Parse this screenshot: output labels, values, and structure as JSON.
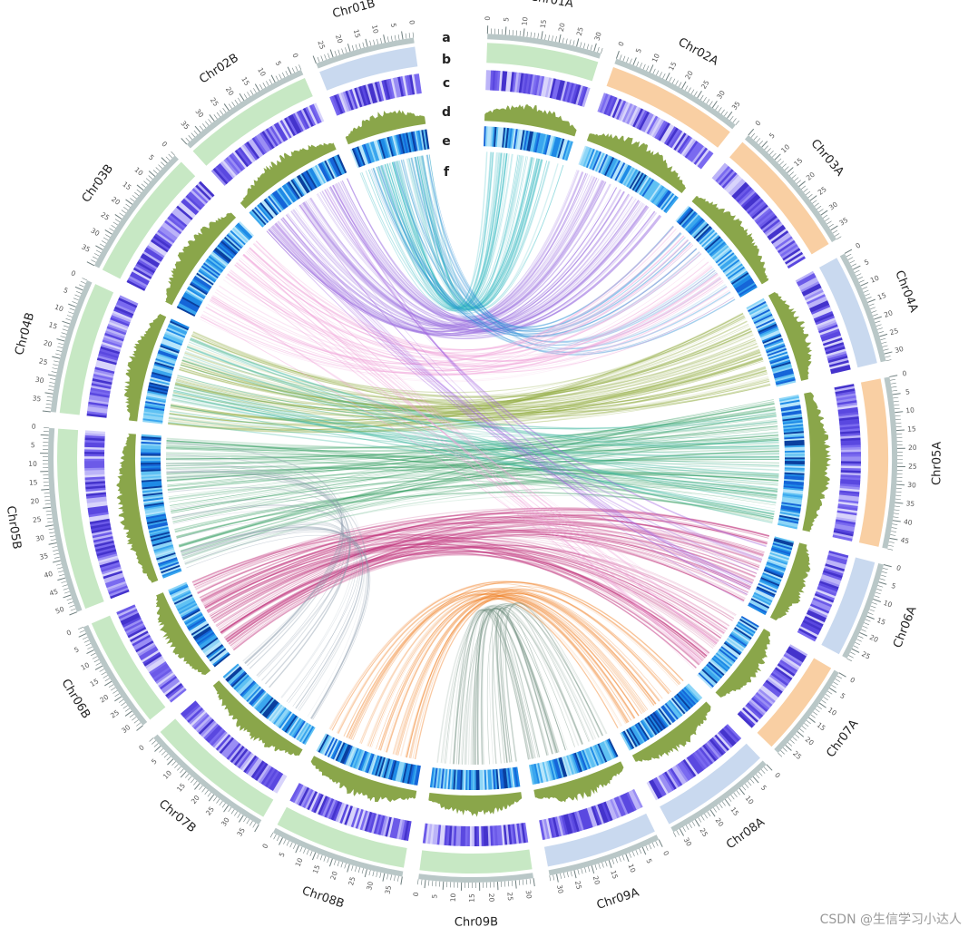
{
  "chart_data": {
    "type": "circos",
    "track_letters": [
      "a",
      "b",
      "c",
      "d",
      "e",
      "f"
    ],
    "chromosomes": [
      {
        "name": "Chr01A",
        "length": 32,
        "ticks": [
          0,
          5,
          10,
          15,
          20,
          25,
          30
        ],
        "genome": "A",
        "color": "#c7e8c4"
      },
      {
        "name": "Chr02A",
        "length": 38,
        "ticks": [
          0,
          5,
          10,
          15,
          20,
          25,
          30,
          35
        ],
        "genome": "A",
        "color": "#f9cfa3"
      },
      {
        "name": "Chr03A",
        "length": 38,
        "ticks": [
          0,
          5,
          10,
          15,
          20,
          25,
          30,
          35
        ],
        "genome": "A",
        "color": "#f9cfa3"
      },
      {
        "name": "Chr04A",
        "length": 32,
        "ticks": [
          0,
          5,
          10,
          15,
          20,
          25,
          30
        ],
        "genome": "A",
        "color": "#c9d9ef"
      },
      {
        "name": "Chr05A",
        "length": 48,
        "ticks": [
          0,
          5,
          10,
          15,
          20,
          25,
          30,
          35,
          40,
          45
        ],
        "genome": "A",
        "color": "#f9cfa3"
      },
      {
        "name": "Chr06A",
        "length": 28,
        "ticks": [
          0,
          5,
          10,
          15,
          20,
          25
        ],
        "genome": "A",
        "color": "#c9d9ef"
      },
      {
        "name": "Chr07A",
        "length": 28,
        "ticks": [
          0,
          5,
          10,
          15,
          20,
          25
        ],
        "genome": "A",
        "color": "#f9cfa3"
      },
      {
        "name": "Chr08A",
        "length": 32,
        "ticks": [
          0,
          5,
          10,
          15,
          20,
          25,
          30
        ],
        "genome": "A",
        "color": "#c9d9ef"
      },
      {
        "name": "Chr09A",
        "length": 32,
        "ticks": [
          0,
          5,
          10,
          15,
          20,
          25,
          30
        ],
        "genome": "A",
        "color": "#c9d9ef"
      },
      {
        "name": "Chr09B",
        "length": 32,
        "ticks": [
          30,
          25,
          20,
          15,
          10,
          5,
          0
        ],
        "genome": "B",
        "color": "#c7e8c4"
      },
      {
        "name": "Chr08B",
        "length": 38,
        "ticks": [
          35,
          30,
          25,
          20,
          15,
          10,
          5,
          0
        ],
        "genome": "B",
        "color": "#c7e8c4"
      },
      {
        "name": "Chr07B",
        "length": 38,
        "ticks": [
          35,
          30,
          25,
          20,
          15,
          10,
          5,
          0
        ],
        "genome": "B",
        "color": "#c7e8c4"
      },
      {
        "name": "Chr06B",
        "length": 32,
        "ticks": [
          30,
          25,
          20,
          15,
          10,
          5,
          0
        ],
        "genome": "B",
        "color": "#c7e8c4"
      },
      {
        "name": "Chr05B",
        "length": 52,
        "ticks": [
          50,
          45,
          40,
          35,
          30,
          25,
          20,
          15,
          10,
          5,
          0
        ],
        "genome": "B",
        "color": "#c7e8c4"
      },
      {
        "name": "Chr04B",
        "length": 38,
        "ticks": [
          35,
          30,
          25,
          20,
          15,
          10,
          5,
          0
        ],
        "genome": "B",
        "color": "#c7e8c4"
      },
      {
        "name": "Chr03B",
        "length": 38,
        "ticks": [
          35,
          30,
          25,
          20,
          15,
          10,
          5,
          0
        ],
        "genome": "B",
        "color": "#c7e8c4"
      },
      {
        "name": "Chr02B",
        "length": 38,
        "ticks": [
          35,
          30,
          25,
          20,
          15,
          10,
          5,
          0
        ],
        "genome": "B",
        "color": "#c7e8c4"
      },
      {
        "name": "Chr01B",
        "length": 28,
        "ticks": [
          25,
          20,
          15,
          10,
          5,
          0
        ],
        "genome": "B",
        "color": "#c9d9ef"
      }
    ],
    "link_colors": {
      "Chr01A": "#3bbcc4",
      "Chr02A": "#9b6fe0",
      "Chr01B": "#2c8fd6",
      "Chr02B": "#a060e0",
      "Chr03B": "#f0a0d8",
      "Chr04B": "#8faa3c",
      "Chr05A": "#3fb8a0",
      "Chr05B": "#2e9a5c",
      "Chr06B": "#c0307a",
      "Chr08B": "#f07a1a",
      "Chr09B": "#6a8a7a"
    },
    "links": [
      {
        "from": "Chr01A",
        "to": "Chr01B",
        "count": 60
      },
      {
        "from": "Chr02A",
        "to": "Chr02B",
        "count": 70
      },
      {
        "from": "Chr01B",
        "to": "Chr03A",
        "count": 25
      },
      {
        "from": "Chr03B",
        "to": "Chr03A",
        "count": 40
      },
      {
        "from": "Chr04B",
        "to": "Chr04A",
        "count": 70
      },
      {
        "from": "Chr05B",
        "to": "Chr05A",
        "count": 80
      },
      {
        "from": "Chr05A",
        "to": "Chr04B",
        "count": 40
      },
      {
        "from": "Chr06B",
        "to": "Chr06A",
        "count": 50
      },
      {
        "from": "Chr06B",
        "to": "Chr07A",
        "count": 40
      },
      {
        "from": "Chr08B",
        "to": "Chr08A",
        "count": 45
      },
      {
        "from": "Chr09B",
        "to": "Chr09A",
        "count": 40
      },
      {
        "from": "Chr07B",
        "to": "Chr05B",
        "count": 25
      },
      {
        "from": "Chr02B",
        "to": "Chr06A",
        "count": 15
      },
      {
        "from": "Chr03B",
        "to": "Chr07A",
        "count": 15
      }
    ]
  },
  "watermark": "CSDN @生信学习小达人"
}
